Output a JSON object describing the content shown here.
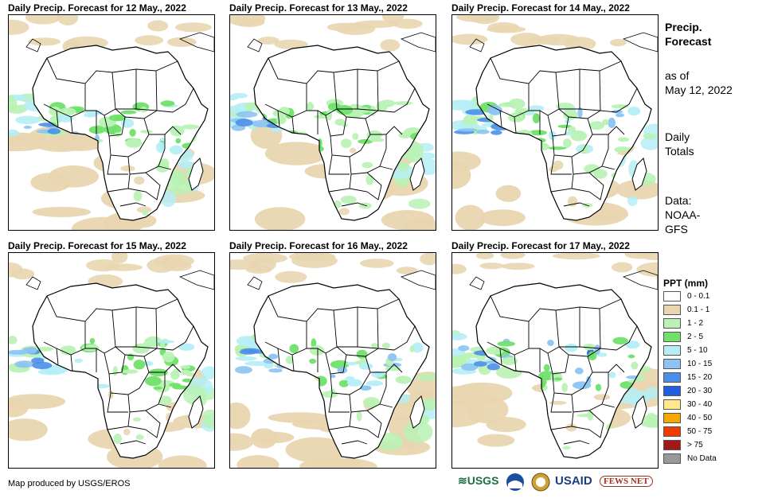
{
  "panels": [
    {
      "title": "Daily Precip. Forecast for 12 May., 2022"
    },
    {
      "title": "Daily Precip. Forecast for 13 May., 2022"
    },
    {
      "title": "Daily Precip. Forecast for 14 May., 2022"
    },
    {
      "title": "Daily Precip. Forecast for 15 May., 2022"
    },
    {
      "title": "Daily Precip. Forecast for 16 May., 2022"
    },
    {
      "title": "Daily Precip. Forecast for 17 May., 2022"
    }
  ],
  "side": {
    "title_line1": "Precip.",
    "title_line2": "Forecast",
    "asof_line1": "as of",
    "asof_line2": "May 12, 2022",
    "totals_line1": "Daily",
    "totals_line2": "Totals",
    "source_line1": "Data:",
    "source_line2": "NOAA-",
    "source_line3": "GFS"
  },
  "legend": {
    "title": "PPT (mm)",
    "items": [
      {
        "label": "0 - 0.1",
        "color": "#ffffff"
      },
      {
        "label": "0.1 - 1",
        "color": "#e9d6b0"
      },
      {
        "label": "1 - 2",
        "color": "#b9f2b4"
      },
      {
        "label": "2 - 5",
        "color": "#6fe06a"
      },
      {
        "label": "5 - 10",
        "color": "#b5eef5"
      },
      {
        "label": "10 - 15",
        "color": "#8cc3f2"
      },
      {
        "label": "15 - 20",
        "color": "#4d8fe8"
      },
      {
        "label": "20 - 30",
        "color": "#1f5ee0"
      },
      {
        "label": "30 - 40",
        "color": "#ffe98a"
      },
      {
        "label": "40 - 50",
        "color": "#f7a800"
      },
      {
        "label": "50 - 75",
        "color": "#f03c00"
      },
      {
        "label": "> 75",
        "color": "#a01818"
      },
      {
        "label": "No Data",
        "color": "#999999"
      }
    ]
  },
  "footer": {
    "credit": "Map produced by USGS/EROS",
    "logo_usgs": "≋USGS",
    "logo_usaid": "USAID",
    "logo_fewsnet": "FEWS NET"
  }
}
